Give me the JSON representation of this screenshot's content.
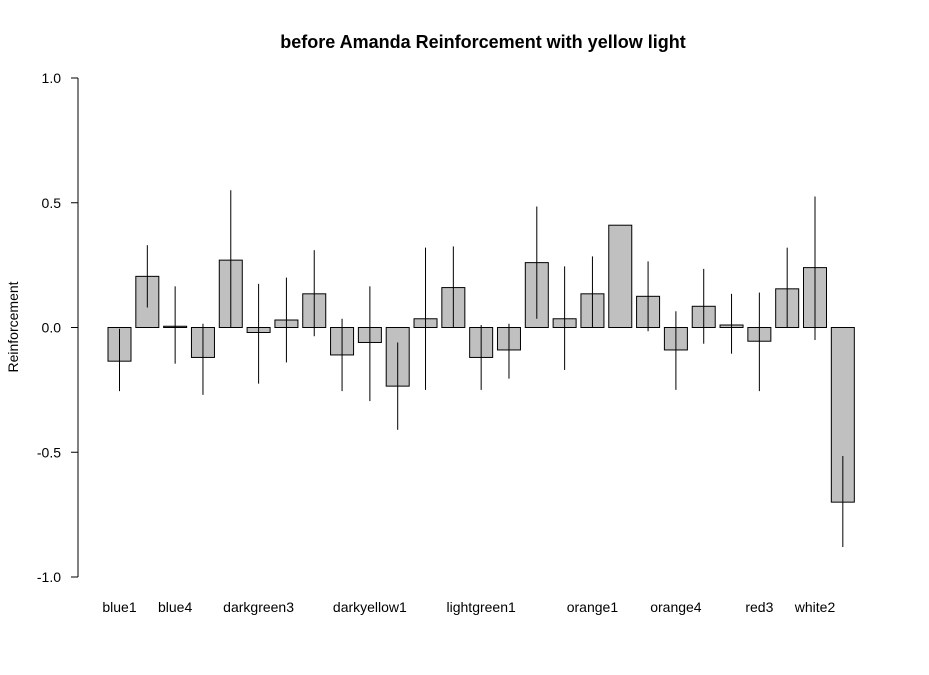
{
  "chart_data": {
    "type": "bar",
    "title": "before Amanda Reinforcement with yellow light",
    "xlabel": "",
    "ylabel": "Reinforcement",
    "ylim": [
      -1.0,
      1.0
    ],
    "yticks": [
      "-1.0",
      "-0.5",
      "0.0",
      "0.5",
      "1.0"
    ],
    "ytick_values": [
      -1.0,
      -0.5,
      0.0,
      0.5,
      1.0
    ],
    "grid": false,
    "legend": "none",
    "bar_fill": "#c0c0c0",
    "bar_stroke": "#000000",
    "n_bars": 27,
    "category_labels": [
      {
        "label": "blue1",
        "bar_index": 0
      },
      {
        "label": "blue4",
        "bar_index": 2
      },
      {
        "label": "darkgreen3",
        "bar_index": 5
      },
      {
        "label": "darkyellow1",
        "bar_index": 9
      },
      {
        "label": "lightgreen1",
        "bar_index": 13
      },
      {
        "label": "orange1",
        "bar_index": 17
      },
      {
        "label": "orange4",
        "bar_index": 20
      },
      {
        "label": "red3",
        "bar_index": 23
      },
      {
        "label": "white2",
        "bar_index": 25
      }
    ],
    "values": [
      -0.135,
      0.205,
      0.005,
      -0.12,
      0.27,
      -0.02,
      0.03,
      0.135,
      -0.11,
      -0.06,
      -0.235,
      0.035,
      0.16,
      -0.12,
      -0.09,
      0.26,
      0.035,
      0.135,
      0.41,
      0.125,
      -0.09,
      0.085,
      0.01,
      -0.055,
      0.155,
      0.24,
      -0.7
    ],
    "err_low": [
      -0.255,
      0.08,
      -0.145,
      -0.27,
      0.0,
      -0.225,
      -0.14,
      -0.035,
      -0.255,
      -0.295,
      -0.41,
      -0.25,
      0.0,
      -0.25,
      -0.205,
      0.035,
      -0.17,
      0.0,
      null,
      -0.015,
      -0.25,
      -0.065,
      -0.105,
      -0.255,
      0.0,
      -0.05,
      -0.88
    ],
    "err_high": [
      -0.005,
      0.33,
      0.165,
      0.015,
      0.55,
      0.175,
      0.2,
      0.31,
      0.035,
      0.165,
      -0.06,
      0.32,
      0.325,
      0.01,
      0.015,
      0.485,
      0.245,
      0.285,
      null,
      0.265,
      0.065,
      0.235,
      0.135,
      0.14,
      0.32,
      0.525,
      -0.515
    ]
  }
}
